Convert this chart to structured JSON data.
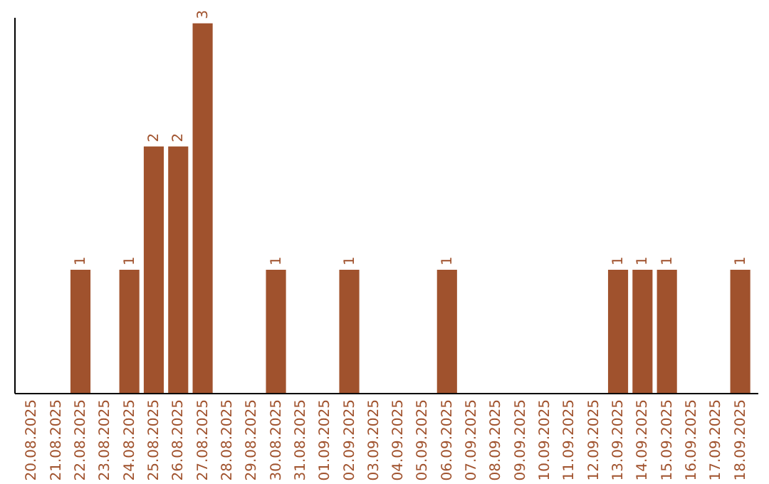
{
  "chart_data": {
    "type": "bar",
    "categories": [
      "20.08.2025",
      "21.08.2025",
      "22.08.2025",
      "23.08.2025",
      "24.08.2025",
      "25.08.2025",
      "26.08.2025",
      "27.08.2025",
      "28.08.2025",
      "29.08.2025",
      "30.08.2025",
      "31.08.2025",
      "01.09.2025",
      "02.09.2025",
      "03.09.2025",
      "04.09.2025",
      "05.09.2025",
      "06.09.2025",
      "07.09.2025",
      "08.09.2025",
      "09.09.2025",
      "10.09.2025",
      "11.09.2025",
      "12.09.2025",
      "13.09.2025",
      "14.09.2025",
      "15.09.2025",
      "16.09.2025",
      "17.09.2025",
      "18.09.2025"
    ],
    "values": [
      0,
      0,
      1,
      0,
      1,
      2,
      2,
      3,
      0,
      0,
      1,
      0,
      0,
      1,
      0,
      0,
      0,
      1,
      0,
      0,
      0,
      0,
      0,
      0,
      1,
      1,
      1,
      0,
      0,
      1
    ],
    "value_labels": [
      null,
      null,
      "1",
      null,
      "1",
      "2",
      "2",
      "3",
      null,
      null,
      "1",
      null,
      null,
      "1",
      null,
      null,
      null,
      "1",
      null,
      null,
      null,
      null,
      null,
      null,
      "1",
      "1",
      "1",
      null,
      null,
      "1"
    ],
    "color": "#a0522d",
    "ylim": [
      0,
      3.05
    ],
    "tick_labels": "x"
  }
}
